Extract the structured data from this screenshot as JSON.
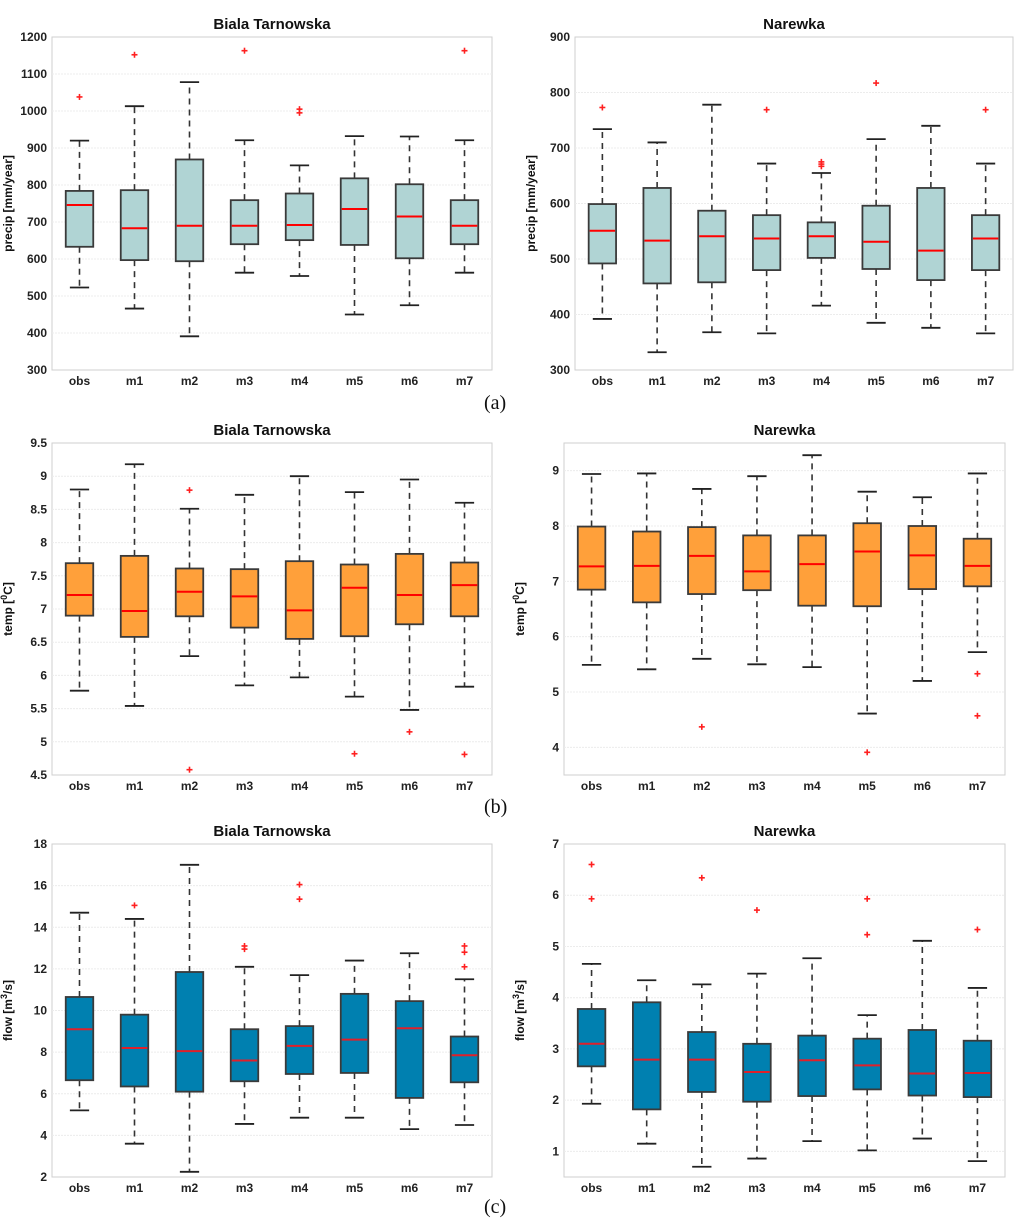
{
  "figure": {
    "panel_labels": [
      "(a)",
      "(b)",
      "(c)"
    ]
  },
  "chart_data": [
    {
      "type": "boxplot",
      "panel": "a",
      "title": "Biala Tarnowska",
      "ylabel": "precip [mm/year]",
      "ylim": [
        300,
        1200
      ],
      "yticks": [
        300,
        400,
        500,
        600,
        700,
        800,
        900,
        1000,
        1100,
        1200
      ],
      "grid": true,
      "box_color": "#b0d4d4",
      "median_color": "#ff0000",
      "categories": [
        "obs",
        "m1",
        "m2",
        "m3",
        "m4",
        "m5",
        "m6",
        "m7"
      ],
      "boxes": [
        {
          "whisker_low": 523,
          "q1": 633,
          "median": 746,
          "q3": 784,
          "whisker_high": 920,
          "outliers": [
            1038
          ]
        },
        {
          "whisker_low": 466,
          "q1": 597,
          "median": 683,
          "q3": 786,
          "whisker_high": 1013,
          "outliers": [
            1152
          ]
        },
        {
          "whisker_low": 391,
          "q1": 594,
          "median": 690,
          "q3": 869,
          "whisker_high": 1078,
          "outliers": []
        },
        {
          "whisker_low": 563,
          "q1": 640,
          "median": 690,
          "q3": 759,
          "whisker_high": 921,
          "outliers": [
            1163
          ]
        },
        {
          "whisker_low": 554,
          "q1": 651,
          "median": 692,
          "q3": 777,
          "whisker_high": 853,
          "outliers": [
            995,
            1005
          ]
        },
        {
          "whisker_low": 450,
          "q1": 638,
          "median": 735,
          "q3": 818,
          "whisker_high": 932,
          "outliers": []
        },
        {
          "whisker_low": 475,
          "q1": 602,
          "median": 715,
          "q3": 802,
          "whisker_high": 931,
          "outliers": []
        },
        {
          "whisker_low": 563,
          "q1": 640,
          "median": 690,
          "q3": 759,
          "whisker_high": 921,
          "outliers": [
            1163
          ]
        }
      ]
    },
    {
      "type": "boxplot",
      "panel": "a",
      "title": "Narewka",
      "ylabel": "precip [mm/year]",
      "ylim": [
        300,
        900
      ],
      "yticks": [
        300,
        400,
        500,
        600,
        700,
        800,
        900
      ],
      "grid": true,
      "box_color": "#b0d4d4",
      "median_color": "#ff0000",
      "categories": [
        "obs",
        "m1",
        "m2",
        "m3",
        "m4",
        "m5",
        "m6",
        "m7"
      ],
      "boxes": [
        {
          "whisker_low": 392,
          "q1": 492,
          "median": 551,
          "q3": 599,
          "whisker_high": 734,
          "outliers": [
            773
          ]
        },
        {
          "whisker_low": 332,
          "q1": 456,
          "median": 533,
          "q3": 628,
          "whisker_high": 710,
          "outliers": []
        },
        {
          "whisker_low": 368,
          "q1": 458,
          "median": 541,
          "q3": 587,
          "whisker_high": 778,
          "outliers": []
        },
        {
          "whisker_low": 366,
          "q1": 480,
          "median": 537,
          "q3": 579,
          "whisker_high": 672,
          "outliers": [
            769
          ]
        },
        {
          "whisker_low": 416,
          "q1": 502,
          "median": 541,
          "q3": 566,
          "whisker_high": 655,
          "outliers": [
            667,
            671,
            675
          ]
        },
        {
          "whisker_low": 385,
          "q1": 482,
          "median": 531,
          "q3": 596,
          "whisker_high": 716,
          "outliers": [
            817
          ]
        },
        {
          "whisker_low": 376,
          "q1": 462,
          "median": 515,
          "q3": 628,
          "whisker_high": 740,
          "outliers": []
        },
        {
          "whisker_low": 366,
          "q1": 480,
          "median": 537,
          "q3": 579,
          "whisker_high": 672,
          "outliers": [
            769
          ]
        }
      ]
    },
    {
      "type": "boxplot",
      "panel": "b",
      "title": "Biala Tarnowska",
      "ylabel": "temp [0C]",
      "ylabel_superscript": "0",
      "ylim": [
        4.5,
        9.5
      ],
      "yticks": [
        4.5,
        5,
        5.5,
        6,
        6.5,
        7,
        7.5,
        8,
        8.5,
        9,
        9.5
      ],
      "grid": true,
      "box_color": "#ffa03a",
      "median_color": "#ff0000",
      "categories": [
        "obs",
        "m1",
        "m2",
        "m3",
        "m4",
        "m5",
        "m6",
        "m7"
      ],
      "boxes": [
        {
          "whisker_low": 5.77,
          "q1": 6.9,
          "median": 7.21,
          "q3": 7.69,
          "whisker_high": 8.8,
          "outliers": []
        },
        {
          "whisker_low": 5.54,
          "q1": 6.58,
          "median": 6.97,
          "q3": 7.8,
          "whisker_high": 9.18,
          "outliers": []
        },
        {
          "whisker_low": 6.29,
          "q1": 6.89,
          "median": 7.26,
          "q3": 7.61,
          "whisker_high": 8.51,
          "outliers": [
            8.79,
            4.58
          ]
        },
        {
          "whisker_low": 5.85,
          "q1": 6.72,
          "median": 7.19,
          "q3": 7.6,
          "whisker_high": 8.72,
          "outliers": []
        },
        {
          "whisker_low": 5.97,
          "q1": 6.55,
          "median": 6.98,
          "q3": 7.72,
          "whisker_high": 9.0,
          "outliers": []
        },
        {
          "whisker_low": 5.68,
          "q1": 6.59,
          "median": 7.32,
          "q3": 7.67,
          "whisker_high": 8.76,
          "outliers": [
            4.82
          ]
        },
        {
          "whisker_low": 5.48,
          "q1": 6.77,
          "median": 7.21,
          "q3": 7.83,
          "whisker_high": 8.95,
          "outliers": [
            5.15
          ]
        },
        {
          "whisker_low": 5.83,
          "q1": 6.89,
          "median": 7.36,
          "q3": 7.7,
          "whisker_high": 8.6,
          "outliers": [
            4.81
          ]
        }
      ]
    },
    {
      "type": "boxplot",
      "panel": "b",
      "title": "Narewka",
      "ylabel": "temp [0C]",
      "ylabel_superscript": "0",
      "ylim": [
        3.5,
        9.5
      ],
      "yticks": [
        4,
        5,
        6,
        7,
        8,
        9
      ],
      "grid": true,
      "box_color": "#ffa03a",
      "median_color": "#ff0000",
      "categories": [
        "obs",
        "m1",
        "m2",
        "m3",
        "m4",
        "m5",
        "m6",
        "m7"
      ],
      "boxes": [
        {
          "whisker_low": 5.49,
          "q1": 6.85,
          "median": 7.27,
          "q3": 7.99,
          "whisker_high": 8.94,
          "outliers": []
        },
        {
          "whisker_low": 5.41,
          "q1": 6.62,
          "median": 7.28,
          "q3": 7.9,
          "whisker_high": 8.95,
          "outliers": []
        },
        {
          "whisker_low": 5.6,
          "q1": 6.77,
          "median": 7.46,
          "q3": 7.98,
          "whisker_high": 8.67,
          "outliers": [
            4.37
          ]
        },
        {
          "whisker_low": 5.5,
          "q1": 6.84,
          "median": 7.18,
          "q3": 7.83,
          "whisker_high": 8.9,
          "outliers": []
        },
        {
          "whisker_low": 5.45,
          "q1": 6.56,
          "median": 7.31,
          "q3": 7.83,
          "whisker_high": 9.28,
          "outliers": []
        },
        {
          "whisker_low": 4.61,
          "q1": 6.55,
          "median": 7.54,
          "q3": 8.05,
          "whisker_high": 8.62,
          "outliers": [
            3.91
          ]
        },
        {
          "whisker_low": 5.2,
          "q1": 6.86,
          "median": 7.47,
          "q3": 8.0,
          "whisker_high": 8.52,
          "outliers": []
        },
        {
          "whisker_low": 5.72,
          "q1": 6.91,
          "median": 7.28,
          "q3": 7.77,
          "whisker_high": 8.95,
          "outliers": [
            5.33,
            4.57
          ]
        }
      ]
    },
    {
      "type": "boxplot",
      "panel": "c",
      "title": "Biala Tarnowska",
      "ylabel": "flow [m3/s]",
      "ylabel_superscript": "3",
      "ylim": [
        2,
        18
      ],
      "yticks": [
        2,
        4,
        6,
        8,
        10,
        12,
        14,
        16,
        18
      ],
      "grid": true,
      "box_color": "#0080b0",
      "median_color": "#e0202a",
      "categories": [
        "obs",
        "m1",
        "m2",
        "m3",
        "m4",
        "m5",
        "m6",
        "m7"
      ],
      "boxes": [
        {
          "whisker_low": 5.2,
          "q1": 6.65,
          "median": 9.1,
          "q3": 10.65,
          "whisker_high": 14.7,
          "outliers": []
        },
        {
          "whisker_low": 3.6,
          "q1": 6.35,
          "median": 8.2,
          "q3": 9.8,
          "whisker_high": 14.4,
          "outliers": [
            15.05
          ]
        },
        {
          "whisker_low": 2.25,
          "q1": 6.1,
          "median": 8.05,
          "q3": 11.85,
          "whisker_high": 17.0,
          "outliers": []
        },
        {
          "whisker_low": 4.55,
          "q1": 6.6,
          "median": 7.6,
          "q3": 9.1,
          "whisker_high": 12.1,
          "outliers": [
            12.95,
            13.1
          ]
        },
        {
          "whisker_low": 4.85,
          "q1": 6.95,
          "median": 8.3,
          "q3": 9.25,
          "whisker_high": 11.7,
          "outliers": [
            15.35,
            16.05
          ]
        },
        {
          "whisker_low": 4.85,
          "q1": 7.0,
          "median": 8.6,
          "q3": 10.8,
          "whisker_high": 12.4,
          "outliers": []
        },
        {
          "whisker_low": 4.3,
          "q1": 5.8,
          "median": 9.15,
          "q3": 10.45,
          "whisker_high": 12.75,
          "outliers": []
        },
        {
          "whisker_low": 4.5,
          "q1": 6.55,
          "median": 7.85,
          "q3": 8.75,
          "whisker_high": 11.5,
          "outliers": [
            12.1,
            12.8,
            13.1
          ]
        }
      ]
    },
    {
      "type": "boxplot",
      "panel": "c",
      "title": "Narewka",
      "ylabel": "flow [m3/s]",
      "ylabel_superscript": "3",
      "ylim": [
        0.5,
        7
      ],
      "yticks": [
        1,
        2,
        3,
        4,
        5,
        6,
        7
      ],
      "grid": true,
      "box_color": "#0080b0",
      "median_color": "#e0202a",
      "categories": [
        "obs",
        "m1",
        "m2",
        "m3",
        "m4",
        "m5",
        "m6",
        "m7"
      ],
      "boxes": [
        {
          "whisker_low": 1.93,
          "q1": 2.66,
          "median": 3.1,
          "q3": 3.78,
          "whisker_high": 4.66,
          "outliers": [
            5.93,
            6.6
          ]
        },
        {
          "whisker_low": 1.15,
          "q1": 1.82,
          "median": 2.79,
          "q3": 3.91,
          "whisker_high": 4.34,
          "outliers": []
        },
        {
          "whisker_low": 0.7,
          "q1": 2.16,
          "median": 2.79,
          "q3": 3.33,
          "whisker_high": 4.26,
          "outliers": [
            6.34
          ]
        },
        {
          "whisker_low": 0.86,
          "q1": 1.97,
          "median": 2.55,
          "q3": 3.1,
          "whisker_high": 4.47,
          "outliers": [
            5.71
          ]
        },
        {
          "whisker_low": 1.2,
          "q1": 2.08,
          "median": 2.78,
          "q3": 3.26,
          "whisker_high": 4.77,
          "outliers": []
        },
        {
          "whisker_low": 1.02,
          "q1": 2.21,
          "median": 2.68,
          "q3": 3.2,
          "whisker_high": 3.66,
          "outliers": [
            5.23,
            5.93
          ]
        },
        {
          "whisker_low": 1.25,
          "q1": 2.09,
          "median": 2.52,
          "q3": 3.37,
          "whisker_high": 5.11,
          "outliers": []
        },
        {
          "whisker_low": 0.81,
          "q1": 2.06,
          "median": 2.53,
          "q3": 3.16,
          "whisker_high": 4.19,
          "outliers": [
            5.33
          ]
        }
      ]
    }
  ]
}
